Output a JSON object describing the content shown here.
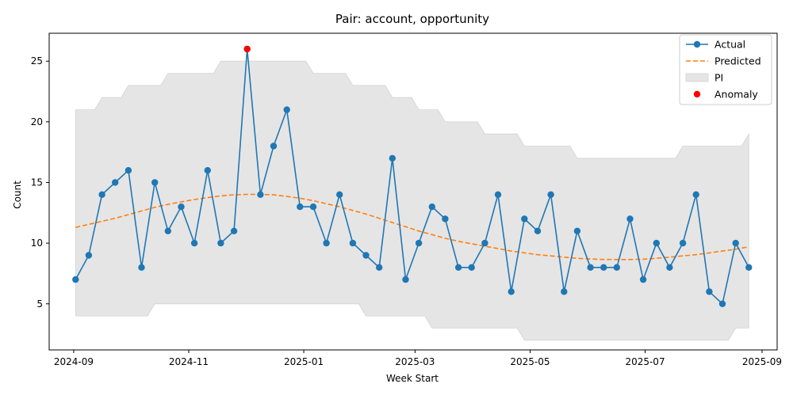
{
  "chart_data": {
    "type": "line",
    "title": "Pair: account, opportunity",
    "xlabel": "Week Start",
    "ylabel": "Count",
    "x_tick_labels": [
      "2024-09",
      "2024-11",
      "2025-01",
      "2025-03",
      "2025-05",
      "2025-07",
      "2025-09"
    ],
    "x_tick_dates": [
      "2024-09-01",
      "2024-11-01",
      "2025-01-01",
      "2025-03-01",
      "2025-05-01",
      "2025-07-01",
      "2025-09-01"
    ],
    "xlim": [
      "2024-08-19",
      "2025-09-09"
    ],
    "y_ticks": [
      5,
      10,
      15,
      20,
      25
    ],
    "ylim": [
      1.2,
      27.3
    ],
    "legend": {
      "placement": "top-right",
      "entries": [
        "Actual",
        "Predicted",
        "PI",
        "Anomaly"
      ]
    },
    "colors": {
      "actual": "#1f77b4",
      "predicted": "#ff7f0e",
      "pi": "#e5e5e5",
      "anomaly": "#ff0000"
    },
    "x": [
      "2024-09-02",
      "2024-09-09",
      "2024-09-16",
      "2024-09-23",
      "2024-09-30",
      "2024-10-07",
      "2024-10-14",
      "2024-10-21",
      "2024-10-28",
      "2024-11-04",
      "2024-11-11",
      "2024-11-18",
      "2024-11-25",
      "2024-12-02",
      "2024-12-09",
      "2024-12-16",
      "2024-12-23",
      "2024-12-30",
      "2025-01-06",
      "2025-01-13",
      "2025-01-20",
      "2025-01-27",
      "2025-02-03",
      "2025-02-10",
      "2025-02-17",
      "2025-02-24",
      "2025-03-03",
      "2025-03-10",
      "2025-03-17",
      "2025-03-24",
      "2025-03-31",
      "2025-04-07",
      "2025-04-14",
      "2025-04-21",
      "2025-04-28",
      "2025-05-05",
      "2025-05-12",
      "2025-05-19",
      "2025-05-26",
      "2025-06-02",
      "2025-06-09",
      "2025-06-16",
      "2025-06-23",
      "2025-06-30",
      "2025-07-07",
      "2025-07-14",
      "2025-07-21",
      "2025-07-28",
      "2025-08-04",
      "2025-08-11",
      "2025-08-18",
      "2025-08-25"
    ],
    "series": [
      {
        "name": "Actual",
        "values": [
          7,
          9,
          14,
          15,
          16,
          8,
          15,
          11,
          13,
          10,
          16,
          10,
          11,
          26,
          14,
          18,
          21,
          13,
          13,
          10,
          14,
          10,
          9,
          8,
          17,
          7,
          10,
          13,
          12,
          8,
          8,
          10,
          14,
          6,
          12,
          11,
          14,
          6,
          11,
          8,
          8,
          8,
          12,
          7,
          10,
          8,
          10,
          14,
          6,
          5,
          10,
          8
        ]
      },
      {
        "name": "Predicted",
        "values": [
          11.3,
          11.55,
          11.8,
          12.05,
          12.35,
          12.65,
          12.95,
          13.2,
          13.4,
          13.6,
          13.75,
          13.9,
          13.98,
          14.02,
          14.02,
          13.98,
          13.85,
          13.7,
          13.5,
          13.25,
          13.0,
          12.7,
          12.4,
          12.05,
          11.7,
          11.35,
          11.0,
          10.7,
          10.4,
          10.15,
          9.95,
          9.75,
          9.55,
          9.35,
          9.2,
          9.05,
          8.95,
          8.85,
          8.75,
          8.7,
          8.66,
          8.65,
          8.65,
          8.68,
          8.75,
          8.85,
          8.95,
          9.05,
          9.2,
          9.35,
          9.5,
          9.7
        ]
      },
      {
        "name": "PI",
        "lower": [
          4,
          4,
          4,
          4,
          4,
          4,
          5,
          5,
          5,
          5,
          5,
          5,
          5,
          5,
          5,
          5,
          5,
          5,
          5,
          5,
          5,
          5,
          4,
          4,
          4,
          4,
          4,
          3,
          3,
          3,
          3,
          3,
          3,
          3,
          2,
          2,
          2,
          2,
          2,
          2,
          2,
          2,
          2,
          2,
          2,
          2,
          2,
          2,
          2,
          2,
          3,
          3
        ],
        "upper": [
          21,
          21,
          22,
          22,
          23,
          23,
          23,
          24,
          24,
          24,
          24,
          25,
          25,
          25,
          25,
          25,
          25,
          25,
          24,
          24,
          24,
          23,
          23,
          23,
          22,
          22,
          21,
          21,
          20,
          20,
          20,
          19,
          19,
          19,
          18,
          18,
          18,
          18,
          17,
          17,
          17,
          17,
          17,
          17,
          17,
          17,
          18,
          18,
          18,
          18,
          18,
          19
        ]
      },
      {
        "name": "Anomaly",
        "points": [
          {
            "x": "2024-12-02",
            "y": 26
          }
        ]
      }
    ]
  }
}
